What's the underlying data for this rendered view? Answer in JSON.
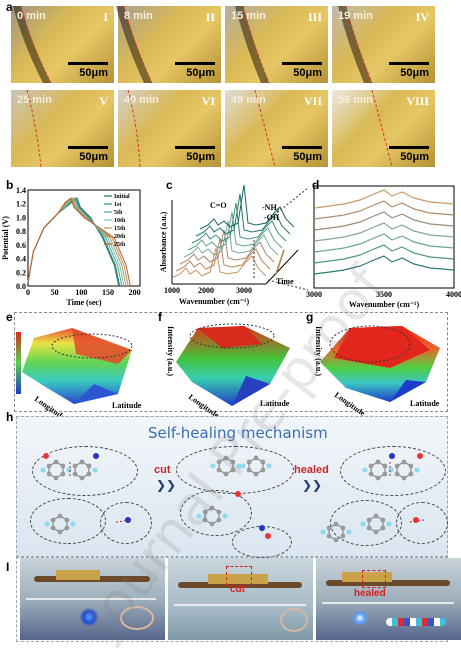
{
  "panel_labels": {
    "a": "a",
    "b": "b",
    "c": "c",
    "d": "d",
    "e": "e",
    "f": "f",
    "g": "g",
    "h": "h",
    "i": "I"
  },
  "micrographs": [
    {
      "time": "0 min",
      "roman": "I",
      "scale": "50μm"
    },
    {
      "time": "8 min",
      "roman": "II",
      "scale": "50μm"
    },
    {
      "time": "15 min",
      "roman": "III",
      "scale": "50μm"
    },
    {
      "time": "19 min",
      "roman": "IV",
      "scale": "50μm"
    },
    {
      "time": "25 min",
      "roman": "V",
      "scale": "50μm"
    },
    {
      "time": "40 min",
      "roman": "VI",
      "scale": "50μm"
    },
    {
      "time": "49 min",
      "roman": "VII",
      "scale": "50μm"
    },
    {
      "time": "56 min",
      "roman": "VIII",
      "scale": "50μm"
    }
  ],
  "chart_b": {
    "type": "line",
    "xlabel": "Time (sec)",
    "ylabel": "Potential (V)",
    "xlim": [
      0,
      210
    ],
    "ylim": [
      0,
      1.4
    ],
    "xticks": [
      "0",
      "50",
      "100",
      "150",
      "200"
    ],
    "yticks": [
      "0.0",
      "0.2",
      "0.4",
      "0.6",
      "0.8",
      "1.0",
      "1.2",
      "1.4"
    ],
    "legend": [
      "Initial",
      "1st",
      "5th",
      "10th",
      "15th",
      "20th",
      "25th"
    ],
    "colors": [
      "#1f6f6a",
      "#2c8a78",
      "#4aa79a",
      "#7cc2b5",
      "#b49a6b",
      "#c98a55",
      "#b2652e"
    ],
    "peaks": [
      92,
      90,
      88,
      86,
      84,
      82,
      80
    ],
    "ends": [
      170,
      172,
      176,
      180,
      184,
      188,
      192
    ]
  },
  "chart_c": {
    "xlabel": "Wavenumber (cm⁻¹)",
    "ylabel": "Absorbance (a.u.)",
    "xticks": [
      "1000",
      "2000",
      "3000"
    ],
    "annotations": [
      "C=O",
      "-NH₂",
      "-OH",
      "Time"
    ]
  },
  "chart_d": {
    "xlabel": "Wavenumber (cm⁻¹)",
    "xticks": [
      "3000",
      "3500",
      "4000"
    ],
    "colors": [
      "#c79a6b",
      "#b48c6a",
      "#9d8a7a",
      "#86a59c",
      "#6fa596",
      "#4f9587",
      "#2f7d70"
    ]
  },
  "surfaces": {
    "zlabel": "Intensity (a.u.)",
    "axis_y": "Longitude",
    "axis_x": "Latitude"
  },
  "mechanism": {
    "title": "Self-healing mechanism",
    "cut": "cut",
    "healed": "healed"
  },
  "photos": {
    "cut": "cut",
    "healed": "healed"
  },
  "watermark": "Journal Pre-proof"
}
